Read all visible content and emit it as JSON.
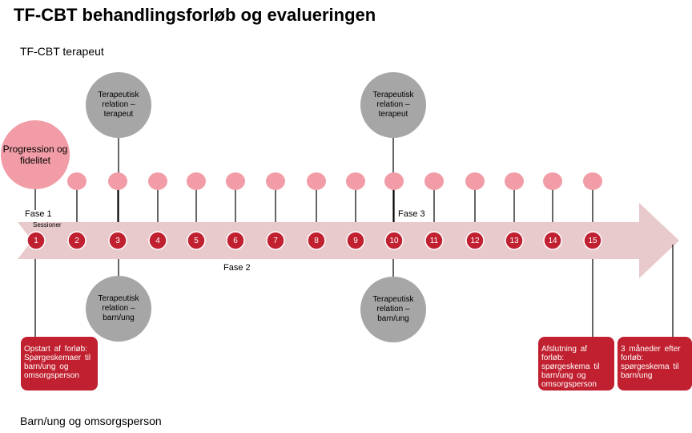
{
  "title": "TF-CBT behandlingsforløb og evalueringen",
  "lanes": {
    "top": "TF-CBT terapeut",
    "bottom": "Barn/ung og omsorgsperson"
  },
  "progression": "Progression og fidelitet",
  "sessions_label": "Sessioner",
  "sessions": [
    "1",
    "2",
    "3",
    "4",
    "5",
    "6",
    "7",
    "8",
    "9",
    "10",
    "11",
    "12",
    "13",
    "14",
    "15"
  ],
  "phases": [
    "Fase 1",
    "Fase 2",
    "Fase 3"
  ],
  "relation_therapist": "Terapeutisk relation – terapeut",
  "relation_child": "Terapeutisk relation – barn/ung",
  "boxes": [
    "Opstart af forløb: Spørgeskemaer til barn/ung og omsorgsperson",
    "Afslutning af forløb: spørgeskema til barn/ung og omsorgsperson",
    "3 måneder efter forløb: spørgeskema til barn/ung"
  ],
  "colors": {
    "session": "#c0202f",
    "pink": "#f19ca6",
    "arrow": "#e8c9cc",
    "gray": "#a6a6a6",
    "box": "#c0202f"
  }
}
